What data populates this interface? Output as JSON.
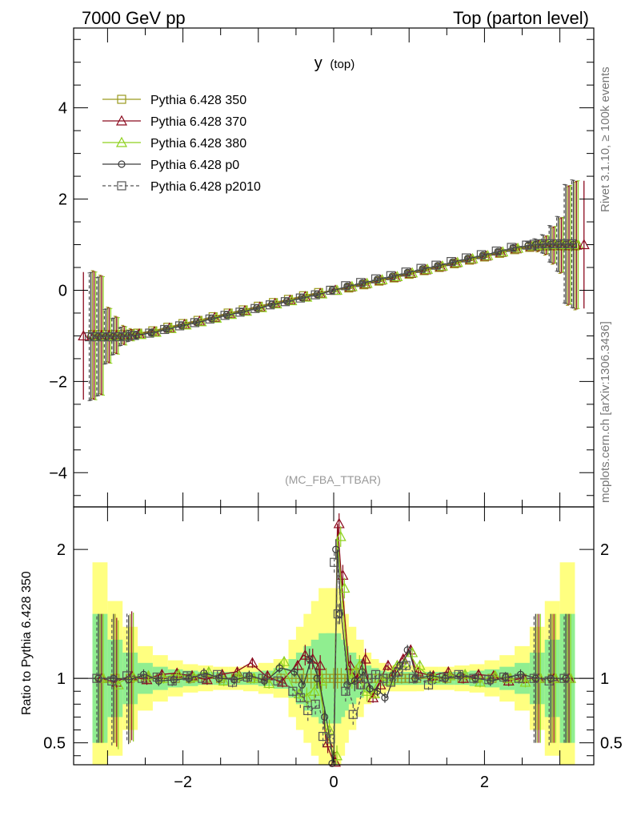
{
  "header": {
    "left": "7000 GeV pp",
    "right": "Top (parton level)"
  },
  "side_labels": {
    "rivet": "Rivet 3.1.10, ≥ 100k events",
    "mcplots": "mcplots.cern.ch [arXiv:1306.3436]"
  },
  "plot_title": {
    "main": "y",
    "sub": "(top)"
  },
  "analysis_tag": "(MC_FBA_TTBAR)",
  "ratio_ylabel": "Ratio to Pythia 6.428 350",
  "colors": {
    "p350": "#9a9a1e",
    "p370": "#8b0a1e",
    "p380": "#8fd11e",
    "p0": "#3c3c3c",
    "p2010": "#555555",
    "band_yellow": "#ffff80",
    "band_green": "#90ee90"
  },
  "chart_data": [
    {
      "type": "line",
      "panel": "main",
      "xlim": [
        -3.45,
        3.45
      ],
      "ylim": [
        -4.75,
        5.75
      ],
      "yticks": [
        -4,
        -2,
        0,
        2,
        4
      ],
      "yticklabels": [
        "−4",
        "−2",
        "0",
        "2",
        "4"
      ],
      "legend_position": "top-left",
      "series": [
        {
          "key": "p350",
          "name": "Pythia 6.428 350",
          "marker": "square",
          "line": "solid"
        },
        {
          "key": "p370",
          "name": "Pythia 6.428 370",
          "marker": "triangle",
          "line": "solid"
        },
        {
          "key": "p380",
          "name": "Pythia 6.428 380",
          "marker": "triangle",
          "line": "solid"
        },
        {
          "key": "p0",
          "name": "Pythia 6.428 p0",
          "marker": "circle",
          "line": "solid"
        },
        {
          "key": "p2010",
          "name": "Pythia 6.428 p2010",
          "marker": "square",
          "line": "dashed"
        }
      ],
      "x": [
        -3.2,
        -3.1,
        -3.0,
        -2.9,
        -2.8,
        -2.7,
        -2.6,
        -2.4,
        -2.2,
        -2.0,
        -1.8,
        -1.6,
        -1.4,
        -1.2,
        -1.0,
        -0.8,
        -0.6,
        -0.4,
        -0.2,
        0.0,
        0.2,
        0.4,
        0.6,
        0.8,
        1.0,
        1.2,
        1.4,
        1.6,
        1.8,
        2.0,
        2.2,
        2.4,
        2.6,
        2.7,
        2.8,
        2.9,
        3.0,
        3.1,
        3.2
      ],
      "y": [
        -1.0,
        -1.0,
        -1.0,
        -1.0,
        -1.0,
        -0.99,
        -0.97,
        -0.92,
        -0.84,
        -0.76,
        -0.69,
        -0.61,
        -0.53,
        -0.46,
        -0.38,
        -0.3,
        -0.23,
        -0.15,
        -0.08,
        0.0,
        0.08,
        0.15,
        0.23,
        0.3,
        0.38,
        0.46,
        0.53,
        0.61,
        0.69,
        0.76,
        0.84,
        0.92,
        0.97,
        0.99,
        1.0,
        1.0,
        1.0,
        1.0,
        1.0
      ],
      "yerr": [
        1.4,
        1.3,
        0.6,
        0.4,
        0.2,
        0.12,
        0.08,
        0.05,
        0.04,
        0.03,
        0.03,
        0.03,
        0.03,
        0.03,
        0.03,
        0.03,
        0.03,
        0.03,
        0.03,
        0.03,
        0.03,
        0.03,
        0.03,
        0.03,
        0.03,
        0.03,
        0.03,
        0.03,
        0.03,
        0.03,
        0.04,
        0.05,
        0.08,
        0.12,
        0.2,
        0.4,
        0.6,
        1.3,
        1.4
      ],
      "outer_points": [
        {
          "x": -3.32,
          "y": -1.0,
          "err": 1.4,
          "series": "p370"
        },
        {
          "x": 3.32,
          "y": 1.0,
          "err": 1.4,
          "series": "p370"
        }
      ]
    },
    {
      "type": "line",
      "panel": "ratio",
      "xlim": [
        -3.45,
        3.45
      ],
      "ylim": [
        0.33,
        2.33
      ],
      "xticks": [
        -2,
        0,
        2
      ],
      "xticklabels": [
        "−2",
        "0",
        "2"
      ],
      "yticks": [
        0.5,
        1,
        2
      ],
      "yticklabels": [
        "0.5",
        "1",
        "2"
      ],
      "ylabel": "Ratio to Pythia 6.428 350",
      "x": [
        -3.1,
        -2.9,
        -2.7,
        -2.5,
        -2.3,
        -2.1,
        -1.9,
        -1.7,
        -1.5,
        -1.3,
        -1.1,
        -0.9,
        -0.7,
        -0.5,
        -0.4,
        -0.3,
        -0.2,
        -0.1,
        0.0,
        0.05,
        0.1,
        0.2,
        0.3,
        0.4,
        0.5,
        0.6,
        0.7,
        0.8,
        0.9,
        1.0,
        1.1,
        1.3,
        1.5,
        1.7,
        1.9,
        2.1,
        2.3,
        2.5,
        2.7,
        2.9,
        3.1
      ],
      "band_yellow": [
        1.9,
        1.6,
        1.4,
        1.25,
        1.18,
        1.14,
        1.11,
        1.1,
        1.09,
        1.09,
        1.1,
        1.12,
        1.15,
        1.3,
        1.4,
        1.5,
        1.6,
        1.7,
        1.7,
        1.6,
        1.5,
        1.4,
        1.3,
        1.2,
        1.15,
        1.12,
        1.1,
        1.1,
        1.1,
        1.1,
        1.1,
        1.09,
        1.09,
        1.1,
        1.11,
        1.14,
        1.18,
        1.25,
        1.4,
        1.6,
        1.9
      ],
      "band_green": [
        1.5,
        1.3,
        1.2,
        1.12,
        1.09,
        1.07,
        1.06,
        1.05,
        1.05,
        1.05,
        1.05,
        1.06,
        1.08,
        1.15,
        1.2,
        1.25,
        1.3,
        1.35,
        1.35,
        1.3,
        1.25,
        1.2,
        1.15,
        1.1,
        1.08,
        1.06,
        1.05,
        1.05,
        1.05,
        1.05,
        1.05,
        1.05,
        1.05,
        1.05,
        1.06,
        1.07,
        1.09,
        1.12,
        1.2,
        1.3,
        1.5
      ],
      "series": [
        {
          "key": "p350",
          "name": "Pythia 6.428 350",
          "values": [
            1.0,
            1.0,
            1.0,
            1.0,
            1.0,
            1.0,
            1.0,
            1.0,
            1.0,
            1.0,
            1.0,
            1.0,
            1.0,
            1.0,
            1.0,
            1.0,
            1.0,
            1.0,
            1.0,
            1.0,
            1.0,
            1.0,
            1.0,
            1.0,
            1.0,
            1.0,
            1.0,
            1.0,
            1.0,
            1.0,
            1.0,
            1.0,
            1.0,
            1.0,
            1.0,
            1.0,
            1.0,
            1.0,
            1.0,
            1.0,
            1.0
          ]
        },
        {
          "key": "p370",
          "name": "Pythia 6.428 370",
          "values": [
            1.0,
            0.97,
            1.02,
            0.99,
            1.03,
            1.04,
            1.02,
            0.99,
            1.03,
            1.05,
            1.12,
            1.02,
            0.97,
            1.1,
            1.18,
            1.15,
            1.1,
            0.5,
            0.35,
            2.2,
            1.8,
            1.1,
            1.0,
            1.15,
            0.85,
            0.95,
            1.1,
            1.05,
            1.15,
            1.22,
            1.05,
            1.02,
            1.05,
            1.0,
            1.03,
            1.02,
            0.98,
            1.0,
            1.0,
            1.0,
            1.0
          ]
        },
        {
          "key": "p380",
          "name": "Pythia 6.428 380",
          "values": [
            1.0,
            0.95,
            1.01,
            1.02,
            1.0,
            1.03,
            1.01,
            1.05,
            0.98,
            1.02,
            1.0,
            0.96,
            1.13,
            0.88,
            0.85,
            0.9,
            0.98,
            0.6,
            0.4,
            2.1,
            1.7,
            1.0,
            1.1,
            0.9,
            0.88,
            1.0,
            0.98,
            1.1,
            1.12,
            1.2,
            1.1,
            1.0,
            1.02,
            1.03,
            0.97,
            1.02,
            1.0,
            0.97,
            1.0,
            1.0,
            1.0
          ]
        },
        {
          "key": "p0",
          "name": "Pythia 6.428 p0",
          "values": [
            1.0,
            1.0,
            0.99,
            1.03,
            0.98,
            0.99,
            1.0,
            1.04,
            1.0,
            0.99,
            1.02,
            0.98,
            1.08,
            1.05,
            0.95,
            1.15,
            1.0,
            0.7,
            0.34,
            2.0,
            1.5,
            0.95,
            0.98,
            1.05,
            0.92,
            0.9,
            0.85,
            1.02,
            1.1,
            1.22,
            1.0,
            1.02,
            1.0,
            1.02,
            1.0,
            0.98,
            1.01,
            1.03,
            1.0,
            1.0,
            1.0
          ]
        },
        {
          "key": "p2010",
          "name": "Pythia 6.428 p2010",
          "values": [
            1.0,
            0.98,
            1.02,
            1.0,
            1.01,
            0.98,
            1.02,
            1.0,
            1.03,
            0.97,
            1.01,
            1.0,
            0.98,
            0.9,
            0.85,
            0.75,
            0.8,
            0.55,
            0.53,
            1.9,
            1.5,
            0.9,
            0.72,
            0.95,
            1.0,
            1.03,
            1.0,
            0.97,
            1.05,
            1.1,
            1.0,
            0.95,
            1.01,
            1.03,
            1.0,
            0.99,
            1.01,
            1.0,
            1.0,
            0.98,
            1.0
          ]
        }
      ]
    }
  ]
}
